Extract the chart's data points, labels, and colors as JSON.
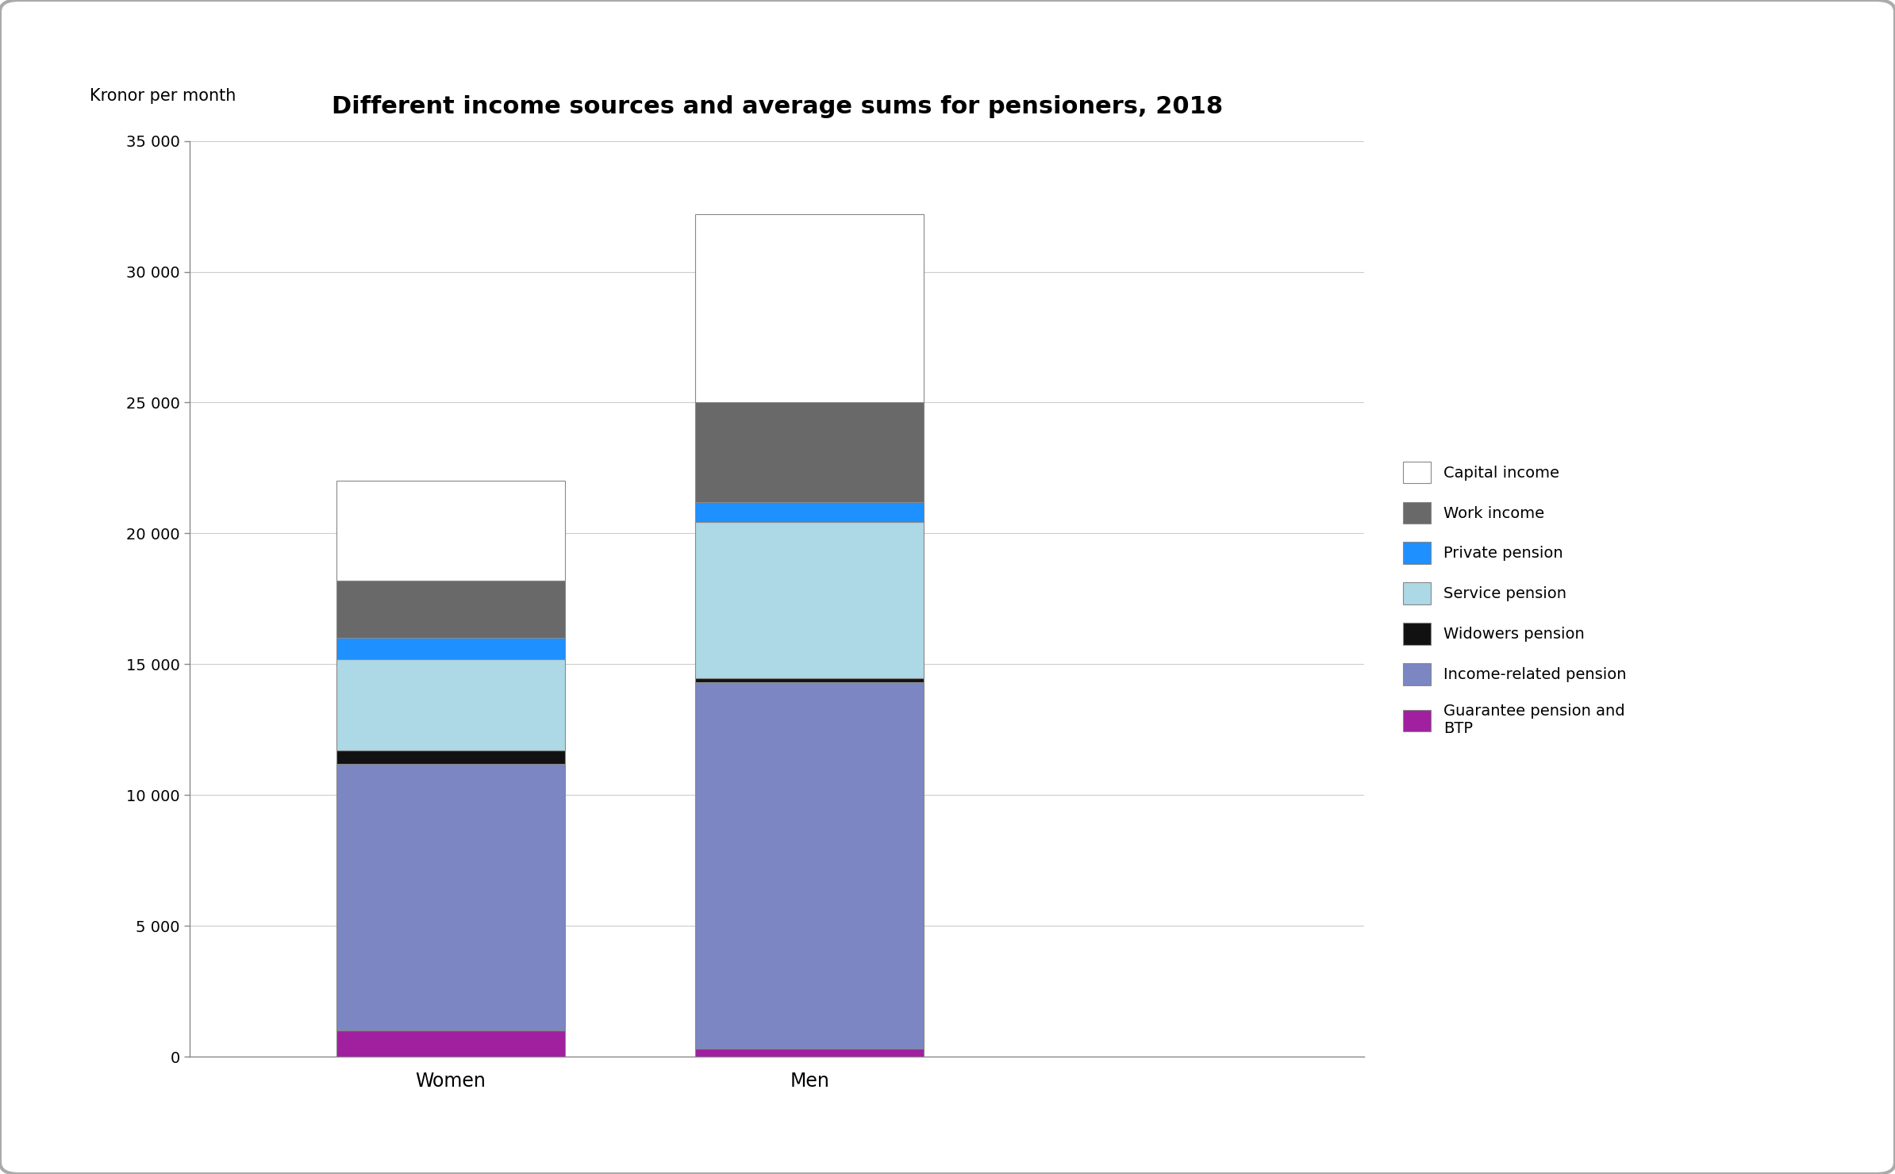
{
  "title": "Different income sources and average sums for pensioners, 2018",
  "ylabel": "Kronor per month",
  "categories": [
    "Women",
    "Men"
  ],
  "segments": [
    {
      "label": "Guarantee pension and\nBTP",
      "color": "#A020A0",
      "values": [
        1000,
        300
      ]
    },
    {
      "label": "Income-related pension",
      "color": "#7B86C2",
      "values": [
        10200,
        14000
      ]
    },
    {
      "label": "Widowers pension",
      "color": "#111111",
      "values": [
        500,
        150
      ]
    },
    {
      "label": "Service pension",
      "color": "#ADD8E6",
      "values": [
        3500,
        6000
      ]
    },
    {
      "label": "Private pension",
      "color": "#1E90FF",
      "values": [
        800,
        750
      ]
    },
    {
      "label": "Work income",
      "color": "#696969",
      "values": [
        2200,
        3800
      ]
    },
    {
      "label": "Capital income",
      "color": "#FFFFFF",
      "values": [
        3800,
        7200
      ]
    }
  ],
  "ylim": [
    0,
    35000
  ],
  "yticks": [
    0,
    5000,
    10000,
    15000,
    20000,
    25000,
    30000,
    35000
  ],
  "ytick_labels": [
    "0",
    "5 000",
    "10 000",
    "15 000",
    "20 000",
    "25 000",
    "30 000",
    "35 000"
  ],
  "bar_width": 0.35,
  "background_color": "#FFFFFF",
  "title_fontsize": 22,
  "axis_label_fontsize": 15,
  "tick_fontsize": 14,
  "legend_fontsize": 14,
  "bar_edge_color": "#888888",
  "bar_edge_width": 0.8
}
